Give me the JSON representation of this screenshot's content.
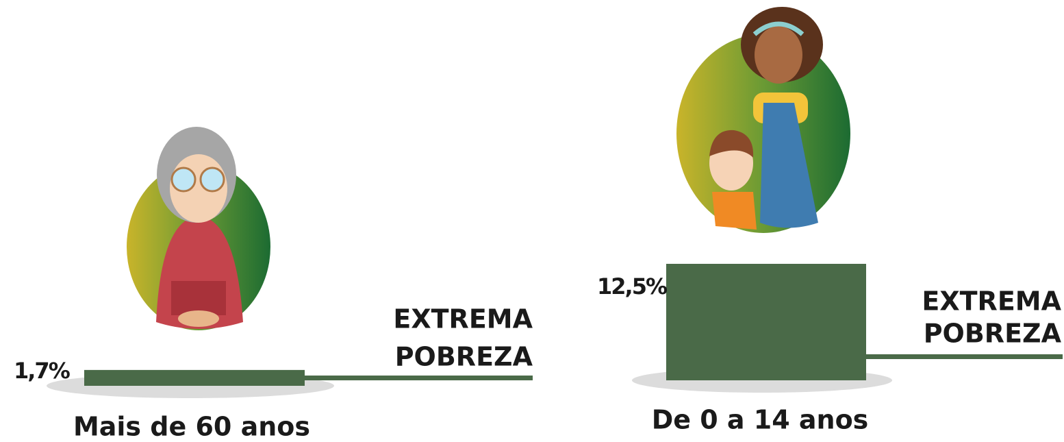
{
  "chart_data": [
    {
      "type": "bar",
      "categories": [
        "Mais de 60 anos"
      ],
      "values": [
        1.7
      ],
      "value_labels": [
        "1,7%"
      ],
      "color": "#4a6a48",
      "annotation": [
        "EXTREMA",
        "POBREZA"
      ]
    },
    {
      "type": "bar",
      "categories": [
        "De 0 a 14 anos"
      ],
      "values": [
        12.5
      ],
      "value_labels": [
        "12,5%"
      ],
      "color": "#4a6a48",
      "annotation": [
        "EXTREMA",
        "POBREZA"
      ]
    }
  ]
}
